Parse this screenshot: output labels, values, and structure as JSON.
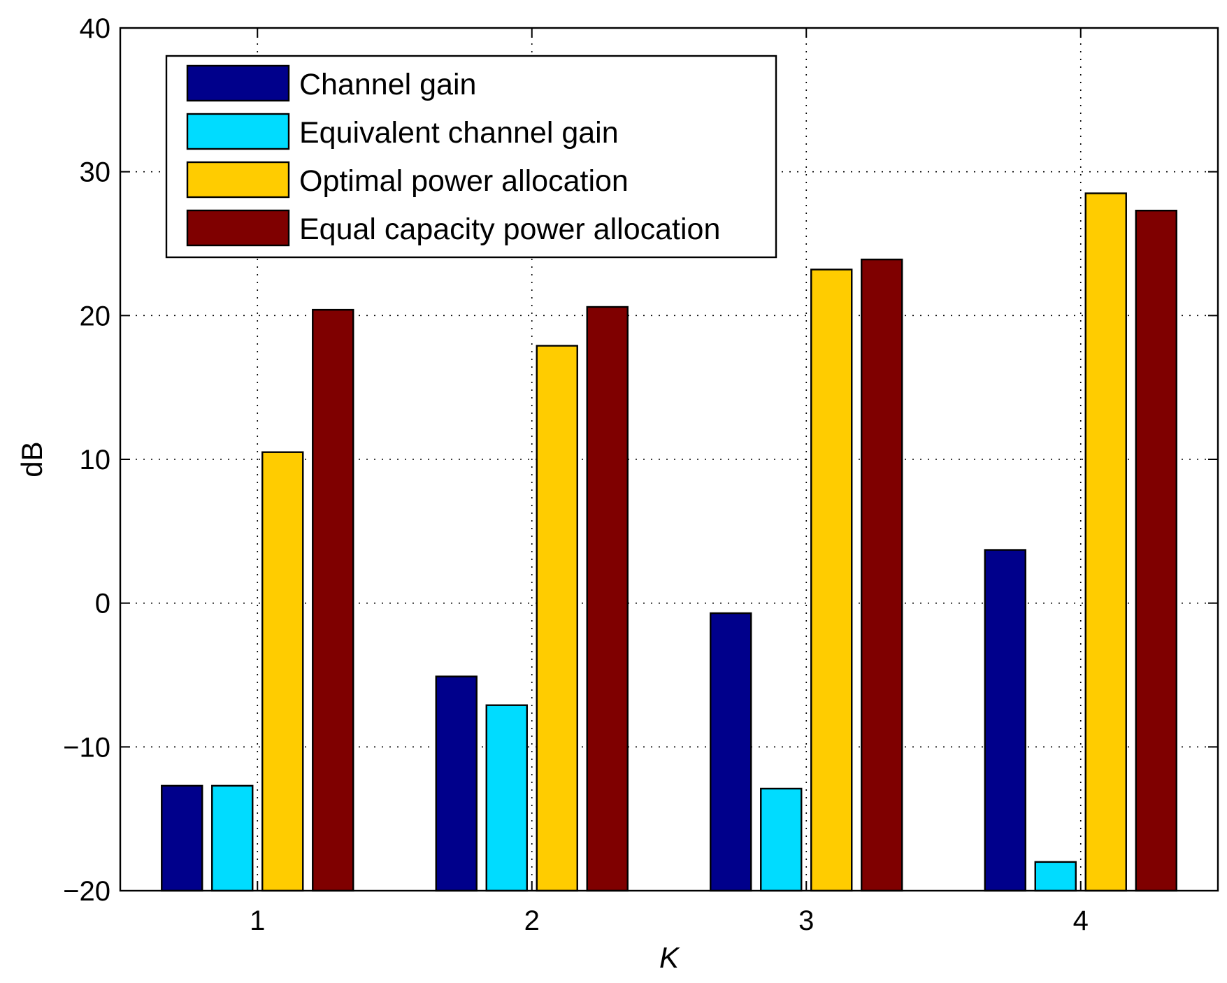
{
  "chart_data": {
    "type": "bar",
    "title": "",
    "xlabel": "K",
    "ylabel": "dB",
    "categories": [
      "1",
      "2",
      "3",
      "4"
    ],
    "ylim": [
      -20,
      40
    ],
    "yticks": [
      -20,
      -10,
      0,
      10,
      20,
      30,
      40
    ],
    "ytick_labels": [
      "−20",
      "−10",
      "0",
      "10",
      "20",
      "30",
      "40"
    ],
    "grid": true,
    "legend_position": "top-left",
    "series": [
      {
        "name": "Channel gain",
        "color": "#00008b",
        "values": [
          -12.7,
          -5.1,
          -0.7,
          3.7
        ]
      },
      {
        "name": "Equivalent channel gain",
        "color": "#00dcff",
        "values": [
          -12.7,
          -7.1,
          -12.9,
          -18.0
        ]
      },
      {
        "name": "Optimal power allocation",
        "color": "#ffcc00",
        "values": [
          10.5,
          17.9,
          23.2,
          28.5
        ]
      },
      {
        "name": "Equal capacity power allocation",
        "color": "#7f0000",
        "values": [
          20.4,
          20.6,
          23.9,
          27.3
        ]
      }
    ]
  }
}
